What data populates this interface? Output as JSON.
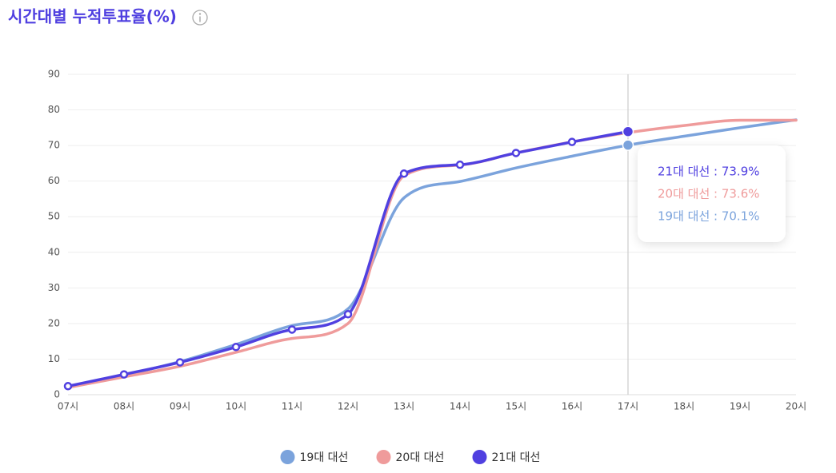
{
  "chart_data": {
    "type": "line",
    "title": "시간대별 누적투표율(%)",
    "categories": [
      "07시",
      "08시",
      "09시",
      "10시",
      "11시",
      "12시",
      "13시",
      "14시",
      "15시",
      "16시",
      "17시",
      "18시",
      "19시",
      "20시"
    ],
    "series": [
      {
        "name": "19대 대선",
        "color": "#7ba3dc",
        "values": [
          2.3,
          5.5,
          9.3,
          14.1,
          19.4,
          24.1,
          55.3,
          59.9,
          63.7,
          67.0,
          70.1,
          72.6,
          75.0,
          77.2
        ]
      },
      {
        "name": "20대 대선",
        "color": "#ef9b9b",
        "values": [
          2.0,
          5.0,
          8.0,
          11.9,
          15.8,
          20.0,
          61.5,
          64.5,
          67.9,
          71.0,
          73.6,
          75.6,
          77.1,
          77.1
        ]
      },
      {
        "name": "21대 대선",
        "color": "#5040e0",
        "values": [
          2.4,
          5.7,
          9.1,
          13.4,
          18.3,
          22.6,
          62.1,
          64.6,
          67.9,
          71.0,
          73.9,
          null,
          null,
          null
        ]
      }
    ],
    "ylim": [
      0,
      90
    ],
    "yticks": [
      0,
      10,
      20,
      30,
      40,
      50,
      60,
      70,
      80,
      90
    ],
    "grid": true,
    "legend": "bottom",
    "tooltip": [
      "21대 대선 : 73.9%",
      "20대 대선 : 73.6%",
      "19대 대선 : 70.1%"
    ]
  }
}
